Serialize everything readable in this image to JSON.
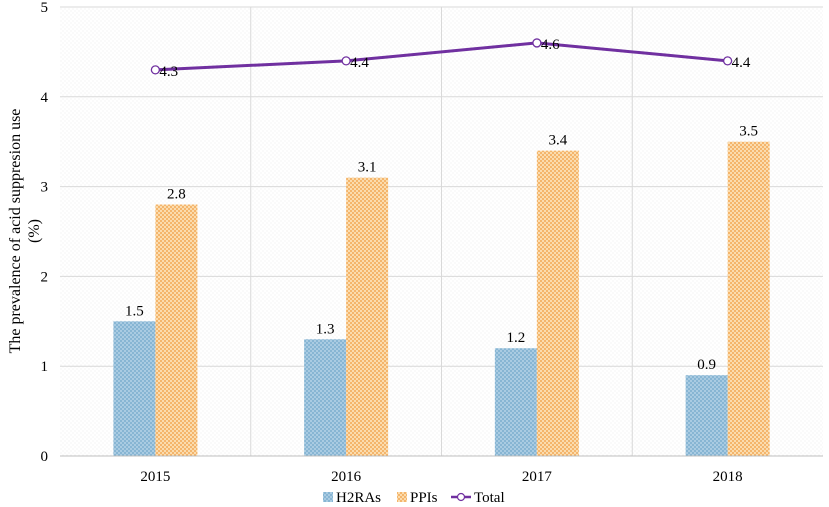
{
  "chart_data": {
    "type": "bar+line",
    "categories": [
      "2015",
      "2016",
      "2017",
      "2018"
    ],
    "series": [
      {
        "name": "H2RAs",
        "type": "bar",
        "values": [
          1.5,
          1.3,
          1.2,
          0.9
        ],
        "color": "#9ec3dc",
        "dot_color": "#6fa6c9"
      },
      {
        "name": "PPIs",
        "type": "bar",
        "values": [
          2.8,
          3.1,
          3.4,
          3.5
        ],
        "color": "#f6c98a",
        "dot_color": "#ef9a3c"
      },
      {
        "name": "Total",
        "type": "line",
        "values": [
          4.3,
          4.4,
          4.6,
          4.4
        ],
        "color": "#7030a0"
      }
    ],
    "data_labels": {
      "H2RAs": [
        "1.5",
        "1.3",
        "1.2",
        "0.9"
      ],
      "PPIs": [
        "2.8",
        "3.1",
        "3.4",
        "3.5"
      ],
      "Total": [
        "4.3",
        "4.4",
        "4.6",
        "4.4"
      ]
    },
    "title": "",
    "xlabel": "",
    "ylabel_line1": "The prevalence of acid suppresion use",
    "ylabel_line2": "(%)",
    "ylim": [
      0,
      5
    ],
    "yticks": [
      "0",
      "1",
      "2",
      "3",
      "4",
      "5"
    ],
    "grid": true,
    "legend_position": "bottom"
  }
}
